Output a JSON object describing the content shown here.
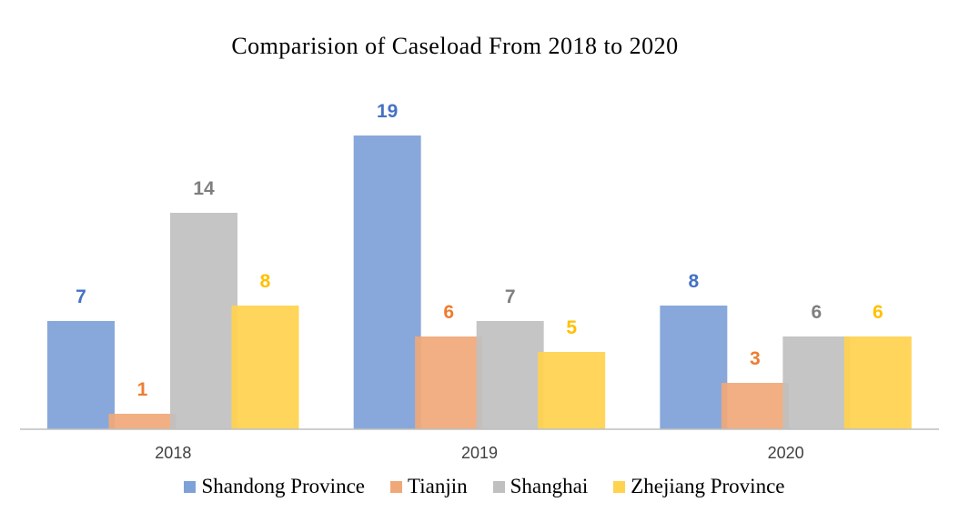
{
  "chart_data": {
    "type": "bar",
    "title": "Comparision of Caseload From 2018 to 2020",
    "xlabel": "",
    "ylabel": "",
    "categories": [
      "2018",
      "2019",
      "2020"
    ],
    "series": [
      {
        "name": "Shandong Province",
        "values": [
          7,
          19,
          8
        ],
        "color": "#7ea1d8",
        "label_color": "#4472c4"
      },
      {
        "name": "Tianjin",
        "values": [
          1,
          6,
          3
        ],
        "color": "#f0a878",
        "label_color": "#ed7d31"
      },
      {
        "name": "Shanghai",
        "values": [
          14,
          7,
          6
        ],
        "color": "#c0c0c0",
        "label_color": "#7f7f7f"
      },
      {
        "name": "Zhejiang Province",
        "values": [
          8,
          5,
          6
        ],
        "color": "#ffd34d",
        "label_color": "#ffc000"
      }
    ],
    "ylim": [
      0,
      19
    ],
    "grid": false,
    "legend": "bottom"
  }
}
